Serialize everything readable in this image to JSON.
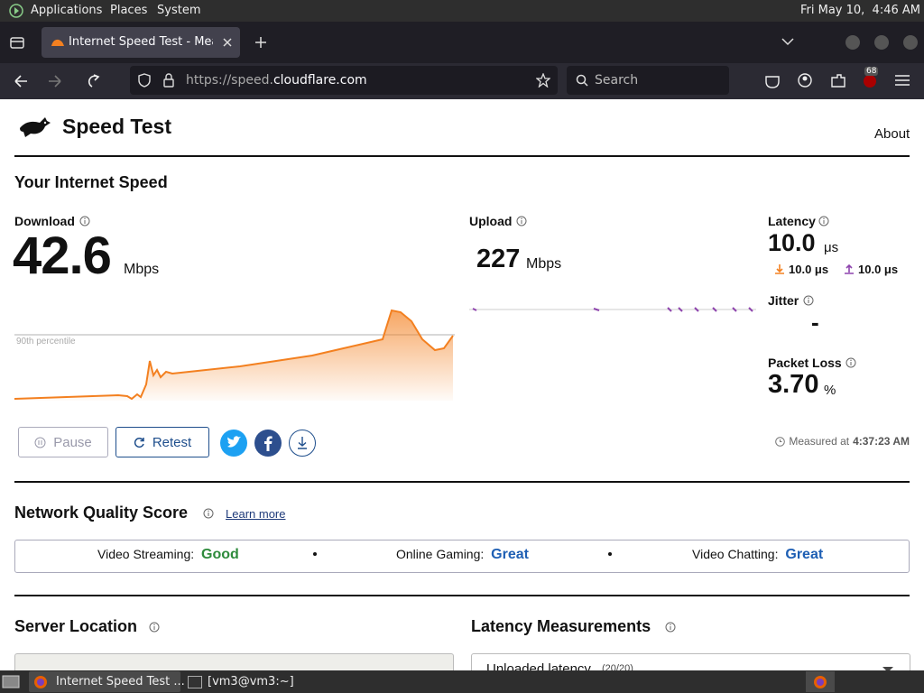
{
  "system_bar": {
    "menus": [
      "Applications",
      "Places",
      "System"
    ],
    "clock": "Fri May 10,  4:46 AM"
  },
  "browser": {
    "tab_title": "Internet Speed Test - Measu",
    "url_prefix": "https://speed.",
    "url_domain": "cloudflare.com",
    "search_placeholder": "Search",
    "extension_badge": "68"
  },
  "page": {
    "site_title": "Speed Test",
    "nav_link": "About",
    "section_title": "Your Internet Speed",
    "download": {
      "label": "Download",
      "value": "42.6",
      "unit": "Mbps",
      "percentile_label": "90th percentile"
    },
    "upload": {
      "label": "Upload",
      "value": "227",
      "unit": "Mbps"
    },
    "latency": {
      "label": "Latency",
      "value": "10.0",
      "unit": "μs",
      "down": "10.0 μs",
      "up": "10.0 μs"
    },
    "jitter": {
      "label": "Jitter",
      "value": "-"
    },
    "packet_loss": {
      "label": "Packet Loss",
      "value": "3.70",
      "unit": "%"
    },
    "buttons": {
      "pause": "Pause",
      "retest": "Retest"
    },
    "measured": {
      "label": "Measured at",
      "time": "4:37:23 AM"
    },
    "network_quality": {
      "title": "Network Quality Score",
      "link": "Learn more",
      "items": [
        {
          "label": "Video Streaming:",
          "value": "Good"
        },
        {
          "label": "Online Gaming:",
          "value": "Great"
        },
        {
          "label": "Video Chatting:",
          "value": "Great"
        }
      ]
    },
    "server_location": {
      "title": "Server Location"
    },
    "latency_measurements": {
      "title": "Latency Measurements",
      "select": "Unloaded latency",
      "count": "(20/20)"
    }
  },
  "taskbar": {
    "items": [
      "Internet Speed Test ...",
      "[vm3@vm3:~]"
    ]
  }
}
